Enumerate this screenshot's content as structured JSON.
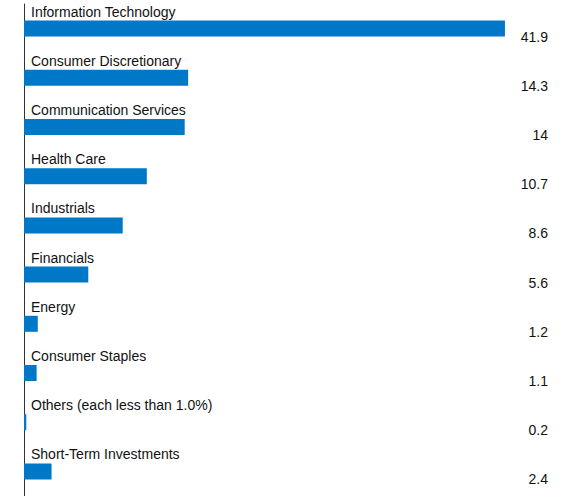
{
  "chart_data": {
    "type": "bar",
    "orientation": "horizontal",
    "categories": [
      "Information Technology",
      "Consumer Discretionary",
      "Communication Services",
      "Health Care",
      "Industrials",
      "Financials",
      "Energy",
      "Consumer Staples",
      "Others (each less than 1.0%)",
      "Short-Term Investments"
    ],
    "values": [
      41.9,
      14.3,
      14.0,
      10.7,
      8.6,
      5.6,
      1.2,
      1.1,
      0.2,
      2.4
    ],
    "color": "#0078c8",
    "xlim": [
      0,
      46
    ],
    "grid": false,
    "data_labels": true,
    "tick_labels": "y"
  }
}
